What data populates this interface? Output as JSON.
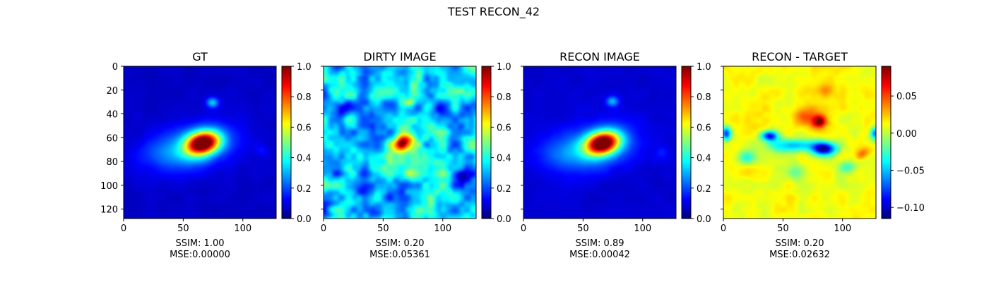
{
  "figure_title": "TEST RECON_42",
  "chart_data": [
    {
      "type": "heatmap",
      "title": "GT",
      "xlabel_lines": [
        "SSIM: 1.00",
        "MSE:0.00000"
      ],
      "xlim": [
        0,
        128
      ],
      "ylim": [
        128,
        0
      ],
      "xticks": [
        0,
        50,
        100
      ],
      "yticks": [
        0,
        20,
        40,
        60,
        80,
        100,
        120
      ],
      "show_ytick_labels": true,
      "colormap": "jet",
      "colorbar": {
        "vmin": 0,
        "vmax": 1,
        "ticks": [
          "0.0",
          "0.2",
          "0.4",
          "0.6",
          "0.8",
          "1.0"
        ]
      },
      "field": {
        "background": 0.07,
        "blobs": [
          {
            "x": 66,
            "y": 64,
            "sx": 10,
            "sy": 6.5,
            "rot": -15,
            "amp": 0.93
          },
          {
            "x": 57,
            "y": 68,
            "sx": 25,
            "sy": 13,
            "rot": -12,
            "amp": 0.22
          },
          {
            "x": 74,
            "y": 30,
            "sx": 3.6,
            "sy": 3.0,
            "rot": 0,
            "amp": 0.25
          },
          {
            "x": 35,
            "y": 72,
            "sx": 18,
            "sy": 8,
            "rot": 0,
            "amp": 0.05
          },
          {
            "x": 116,
            "y": 70,
            "sx": 4,
            "sy": 4,
            "rot": 0,
            "amp": 0.06
          }
        ],
        "noise": 0.01
      }
    },
    {
      "type": "heatmap",
      "title": "DIRTY IMAGE",
      "xlabel_lines": [
        "SSIM: 0.20",
        "MSE:0.05361"
      ],
      "xlim": [
        0,
        128
      ],
      "ylim": [
        128,
        0
      ],
      "xticks": [
        0,
        50,
        100
      ],
      "yticks": [
        0,
        20,
        40,
        60,
        80,
        100,
        120
      ],
      "show_ytick_labels": false,
      "colormap": "jet",
      "colorbar": {
        "vmin": 0,
        "vmax": 1,
        "ticks": [
          "0.0",
          "0.2",
          "0.4",
          "0.6",
          "0.8",
          "1.0"
        ]
      },
      "field": {
        "background": 0.33,
        "blobs": [
          {
            "x": 66,
            "y": 64,
            "sx": 6,
            "sy": 4.5,
            "rot": -25,
            "amp": 0.58
          },
          {
            "x": 72,
            "y": 30,
            "sx": 3.5,
            "sy": 3,
            "rot": 0,
            "amp": 0.22
          },
          {
            "x": 72,
            "y": 90,
            "sx": 4,
            "sy": 4,
            "rot": 0,
            "amp": 0.12
          },
          {
            "x": 14,
            "y": 35,
            "sx": 5,
            "sy": 4,
            "rot": 0,
            "amp": -0.2
          },
          {
            "x": 116,
            "y": 92,
            "sx": 5,
            "sy": 4,
            "rot": 0,
            "amp": -0.22
          },
          {
            "x": 96,
            "y": 38,
            "sx": 8,
            "sy": 5,
            "rot": 0,
            "amp": -0.12
          },
          {
            "x": 30,
            "y": 104,
            "sx": 8,
            "sy": 5,
            "rot": 0,
            "amp": -0.1
          }
        ],
        "noise": 0.13
      }
    },
    {
      "type": "heatmap",
      "title": "RECON IMAGE",
      "xlabel_lines": [
        "SSIM: 0.89",
        "MSE:0.00042"
      ],
      "xlim": [
        0,
        128
      ],
      "ylim": [
        128,
        0
      ],
      "xticks": [
        0,
        50,
        100
      ],
      "yticks": [
        0,
        20,
        40,
        60,
        80,
        100,
        120
      ],
      "show_ytick_labels": false,
      "colormap": "jet",
      "colorbar": {
        "vmin": 0,
        "vmax": 1,
        "ticks": [
          "0.0",
          "0.2",
          "0.4",
          "0.6",
          "0.8",
          "1.0"
        ]
      },
      "field": {
        "background": 0.08,
        "blobs": [
          {
            "x": 66,
            "y": 64,
            "sx": 10,
            "sy": 6.5,
            "rot": -15,
            "amp": 0.9
          },
          {
            "x": 57,
            "y": 68,
            "sx": 25,
            "sy": 13,
            "rot": -12,
            "amp": 0.22
          },
          {
            "x": 74,
            "y": 29,
            "sx": 3.6,
            "sy": 3.0,
            "rot": 0,
            "amp": 0.22
          },
          {
            "x": 35,
            "y": 72,
            "sx": 18,
            "sy": 8,
            "rot": 0,
            "amp": 0.05
          },
          {
            "x": 116,
            "y": 72,
            "sx": 4,
            "sy": 4,
            "rot": 0,
            "amp": 0.06
          }
        ],
        "noise": 0.01
      }
    },
    {
      "type": "heatmap",
      "title": "RECON - TARGET",
      "xlabel_lines": [
        "SSIM: 0.20",
        "MSE:0.02632"
      ],
      "xlim": [
        0,
        128
      ],
      "ylim": [
        128,
        0
      ],
      "xticks": [
        0,
        50,
        100
      ],
      "yticks": [
        0,
        20,
        40,
        60,
        80,
        100,
        120
      ],
      "show_ytick_labels": false,
      "colormap": "jet",
      "colorbar": {
        "vmin": -0.115,
        "vmax": 0.09,
        "ticks": [
          "0.05",
          "0.00",
          "−0.05",
          "−0.10"
        ],
        "tick_values": [
          0.05,
          0.0,
          -0.05,
          -0.1
        ]
      },
      "field": {
        "background": 0.012,
        "blobs": [
          {
            "x": 80,
            "y": 46,
            "sx": 4,
            "sy": 3.5,
            "rot": 0,
            "amp": 0.075
          },
          {
            "x": 70,
            "y": 42,
            "sx": 8,
            "sy": 6,
            "rot": 0,
            "amp": 0.035
          },
          {
            "x": 86,
            "y": 20,
            "sx": 5,
            "sy": 4,
            "rot": 0,
            "amp": 0.025
          },
          {
            "x": 116,
            "y": 73,
            "sx": 5,
            "sy": 3,
            "rot": -35,
            "amp": 0.035
          },
          {
            "x": 38,
            "y": 58,
            "sx": 5,
            "sy": 3,
            "rot": 0,
            "amp": -0.1
          },
          {
            "x": 84,
            "y": 69,
            "sx": 7,
            "sy": 4,
            "rot": 0,
            "amp": -0.11
          },
          {
            "x": 60,
            "y": 66,
            "sx": 18,
            "sy": 4,
            "rot": 0,
            "amp": -0.06
          },
          {
            "x": 2,
            "y": 56,
            "sx": 3,
            "sy": 4,
            "rot": 0,
            "amp": -0.09
          },
          {
            "x": 127,
            "y": 56,
            "sx": 3,
            "sy": 4,
            "rot": 0,
            "amp": -0.08
          },
          {
            "x": 18,
            "y": 76,
            "sx": 6,
            "sy": 4,
            "rot": 0,
            "amp": -0.04
          },
          {
            "x": 104,
            "y": 84,
            "sx": 6,
            "sy": 4,
            "rot": 0,
            "amp": -0.035
          },
          {
            "x": 60,
            "y": 88,
            "sx": 6,
            "sy": 5,
            "rot": 0,
            "amp": -0.03
          }
        ],
        "noise": 0.007
      }
    }
  ]
}
